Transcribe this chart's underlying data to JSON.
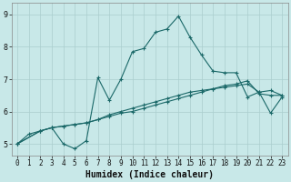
{
  "xlabel": "Humidex (Indice chaleur)",
  "xlim": [
    -0.5,
    23.5
  ],
  "ylim": [
    4.65,
    9.35
  ],
  "bg_color": "#c8e8e8",
  "line_color": "#1a6868",
  "grid_color": "#aacece",
  "xticks": [
    0,
    1,
    2,
    3,
    4,
    5,
    6,
    7,
    8,
    9,
    10,
    11,
    12,
    13,
    14,
    15,
    16,
    17,
    18,
    19,
    20,
    21,
    22,
    23
  ],
  "yticks": [
    5,
    6,
    7,
    8,
    9
  ],
  "line1_x": [
    0,
    1,
    2,
    3,
    4,
    5,
    6,
    7,
    8,
    9,
    10,
    11,
    12,
    13,
    14,
    15,
    16,
    17,
    18,
    19,
    20,
    21,
    22,
    23
  ],
  "line1_y": [
    5.0,
    5.3,
    5.4,
    5.5,
    5.0,
    4.85,
    5.1,
    7.05,
    6.35,
    7.0,
    7.85,
    7.95,
    8.45,
    8.55,
    8.95,
    8.3,
    7.75,
    7.25,
    7.2,
    7.2,
    6.45,
    6.6,
    5.95,
    6.45
  ],
  "line2_x": [
    0,
    2,
    3,
    4,
    5,
    6,
    7,
    8,
    9,
    10,
    11,
    12,
    13,
    14,
    15,
    16,
    17,
    18,
    19,
    20,
    21,
    22,
    23
  ],
  "line2_y": [
    5.0,
    5.4,
    5.5,
    5.55,
    5.6,
    5.65,
    5.75,
    5.9,
    6.0,
    6.1,
    6.2,
    6.3,
    6.4,
    6.5,
    6.6,
    6.65,
    6.7,
    6.75,
    6.8,
    6.85,
    6.6,
    6.65,
    6.5
  ],
  "line3_x": [
    0,
    2,
    3,
    4,
    5,
    6,
    7,
    8,
    9,
    10,
    11,
    12,
    13,
    14,
    15,
    16,
    17,
    18,
    19,
    20,
    21,
    22,
    23
  ],
  "line3_y": [
    5.0,
    5.4,
    5.5,
    5.55,
    5.6,
    5.65,
    5.75,
    5.85,
    5.95,
    6.0,
    6.1,
    6.2,
    6.3,
    6.4,
    6.5,
    6.6,
    6.7,
    6.8,
    6.85,
    6.95,
    6.55,
    6.5,
    6.5
  ],
  "xlabel_fontsize": 7,
  "tick_fontsize": 5.5
}
